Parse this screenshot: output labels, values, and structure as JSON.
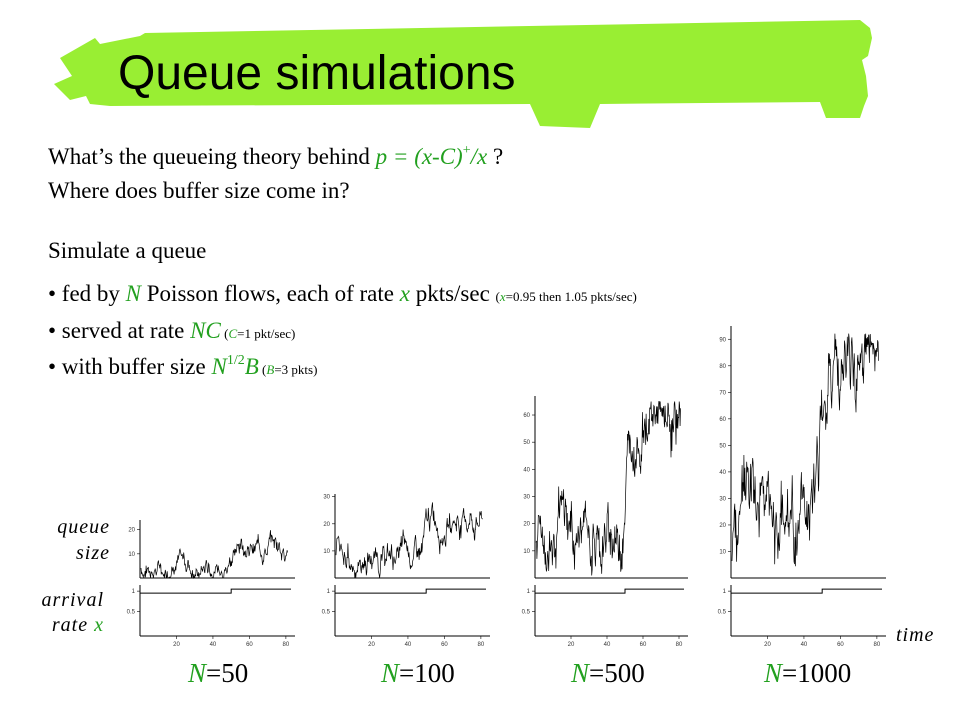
{
  "slide": {
    "title": "Queue simulations",
    "title_color": "#000000",
    "highlight_color": "#99ee33",
    "green": "#22a01f"
  },
  "questions": {
    "q1_prefix": "What’s the queueing theory behind ",
    "q1_formula_a": "p = (x-C)",
    "q1_formula_sup": "+",
    "q1_formula_b": "/x",
    "q1_suffix": " ?",
    "q2": "Where does buffer size come in?"
  },
  "simulation": {
    "intro": "Simulate a queue",
    "bullet1_a": "• fed by ",
    "bullet1_N": "N",
    "bullet1_b": " Poisson flows, each of rate ",
    "bullet1_x": "x",
    "bullet1_c": " pkts/sec ",
    "bullet1_note_open": "(",
    "bullet1_note_x": "x",
    "bullet1_note_rest": "=0.95 then 1.05 pkts/sec)",
    "bullet2_a": "• served at rate ",
    "bullet2_NC": "NC",
    "bullet2_note_open": " (",
    "bullet2_note_C": "C",
    "bullet2_note_rest": "=1 pkt/sec)",
    "bullet3_a": "• with buffer size ",
    "bullet3_N": "N",
    "bullet3_sup": "1/2",
    "bullet3_B": "B",
    "bullet3_note_open": " (",
    "bullet3_note_B": "B",
    "bullet3_note_rest": "=3 pkts)"
  },
  "axis_labels": {
    "queue": "queue",
    "size": "size",
    "arrival": "arrival",
    "rate": "rate",
    "rate_x": "x",
    "time": "time"
  },
  "panel_labels": [
    {
      "N": "N",
      "value": "=50"
    },
    {
      "N": "N",
      "value": "=100"
    },
    {
      "N": "N",
      "value": "=500"
    },
    {
      "N": "N",
      "value": "=1000"
    }
  ],
  "chart_data": [
    {
      "type": "line",
      "title": "N=50",
      "x_ticks": [
        "20",
        "40",
        "60",
        "80"
      ],
      "queue_yticks": [
        "10",
        "20"
      ],
      "queue_ylim": [
        0,
        24
      ],
      "queue_mean_before": 4,
      "queue_mean_after": 14,
      "rate_yticks": [
        "0.5",
        "1"
      ],
      "rate_values": [
        0.95,
        1.05
      ],
      "switch_x": 50
    },
    {
      "type": "line",
      "title": "N=100",
      "x_ticks": [
        "20",
        "40",
        "60",
        "80"
      ],
      "queue_yticks": [
        "10",
        "20",
        "30"
      ],
      "queue_ylim": [
        0,
        31
      ],
      "queue_mean_before": 8,
      "queue_mean_after": 22,
      "rate_yticks": [
        "0.5",
        "1"
      ],
      "rate_values": [
        0.95,
        1.05
      ],
      "switch_x": 50
    },
    {
      "type": "line",
      "title": "N=500",
      "x_ticks": [
        "20",
        "40",
        "60",
        "80"
      ],
      "queue_yticks": [
        "10",
        "20",
        "30",
        "40",
        "50",
        "60"
      ],
      "queue_ylim": [
        0,
        67
      ],
      "queue_mean_before": 15,
      "queue_mean_after": 62,
      "rate_yticks": [
        "0.5",
        "1"
      ],
      "rate_values": [
        0.95,
        1.05
      ],
      "switch_x": 50
    },
    {
      "type": "line",
      "title": "N=1000",
      "x_ticks": [
        "20",
        "40",
        "60",
        "80"
      ],
      "queue_yticks": [
        "10",
        "20",
        "30",
        "40",
        "50",
        "60",
        "70",
        "80",
        "90"
      ],
      "queue_ylim": [
        0,
        95
      ],
      "queue_mean_before": 18,
      "queue_mean_after": 90,
      "rate_yticks": [
        "0.5",
        "1"
      ],
      "rate_values": [
        0.95,
        1.05
      ],
      "switch_x": 50
    }
  ]
}
